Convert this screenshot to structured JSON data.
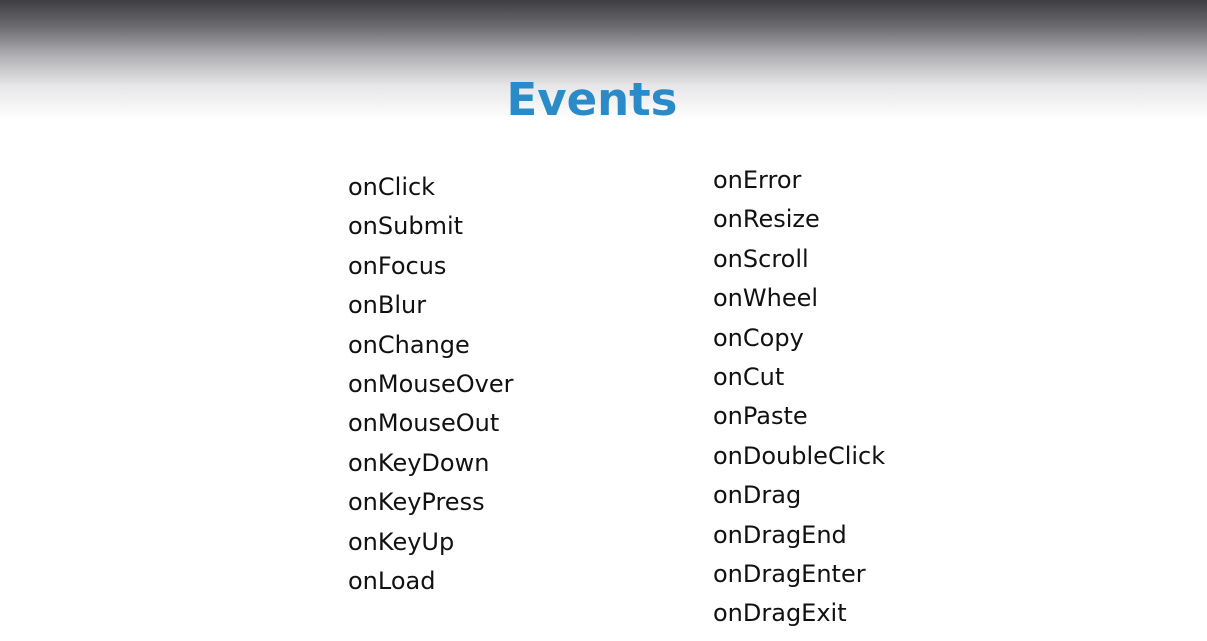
{
  "slide": {
    "title": "Events",
    "title_color": "#2b8ac8"
  },
  "events_left": [
    "onClick",
    "onSubmit",
    "onFocus",
    "onBlur",
    "onChange",
    "onMouseOver",
    "onMouseOut",
    "onKeyDown",
    "onKeyPress",
    "onKeyUp",
    "onLoad"
  ],
  "events_right": [
    "onError",
    "onResize",
    "onScroll",
    "onWheel",
    "onCopy",
    "onCut",
    "onPaste",
    "onDoubleClick",
    "onDrag",
    "onDragEnd",
    "onDragEnter",
    "onDragExit"
  ]
}
